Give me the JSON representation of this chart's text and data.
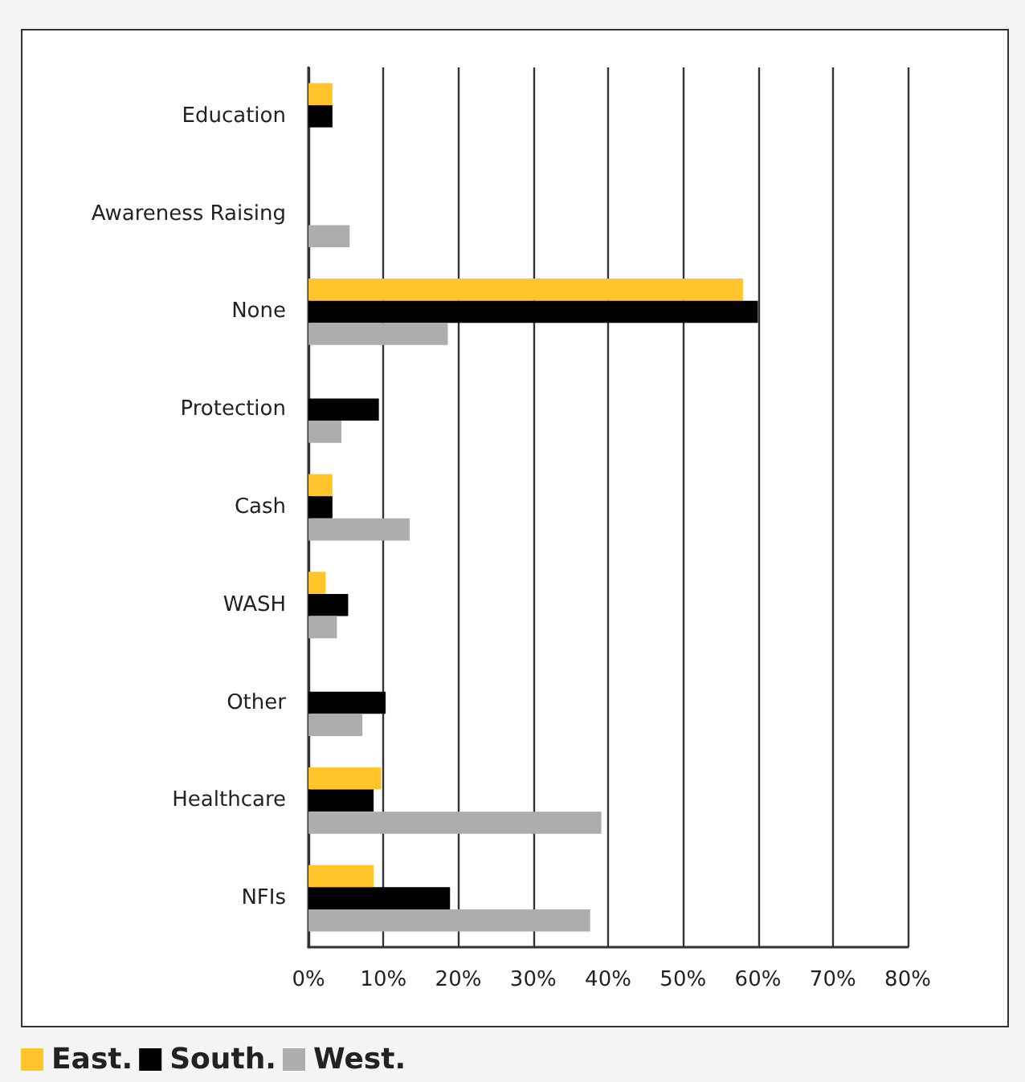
{
  "chart_data": {
    "type": "bar",
    "orientation": "horizontal",
    "categories": [
      "Education",
      "Awareness Raising",
      "None",
      "Protection",
      "Cash",
      "WASH",
      "Other",
      "Healthcare",
      "NFIs"
    ],
    "series": [
      {
        "name": "East.",
        "color": "#ffc52b",
        "values": [
          3.2,
          null,
          58,
          null,
          3.2,
          2.3,
          null,
          9.7,
          8.7
        ]
      },
      {
        "name": "South.",
        "color": "#000000",
        "values": [
          3.2,
          null,
          60,
          9.4,
          3.2,
          5.3,
          10.3,
          8.7,
          18.9
        ]
      },
      {
        "name": "West.",
        "color": "#adadad",
        "values": [
          null,
          5.5,
          18.6,
          4.4,
          13.5,
          3.8,
          7.2,
          39.1,
          37.6
        ]
      }
    ],
    "xlim": [
      0,
      80
    ],
    "xticks": [
      {
        "value": 0,
        "label": "0%"
      },
      {
        "value": 10,
        "label": "10%"
      },
      {
        "value": 20,
        "label": "20%"
      },
      {
        "value": 30,
        "label": "30%"
      },
      {
        "value": 40,
        "label": "40%"
      },
      {
        "value": 50,
        "label": "50%"
      },
      {
        "value": 60,
        "label": "60%"
      },
      {
        "value": 70,
        "label": "70%"
      },
      {
        "value": 80,
        "label": "80%"
      }
    ],
    "grid": "x",
    "legend": "bottom left"
  }
}
